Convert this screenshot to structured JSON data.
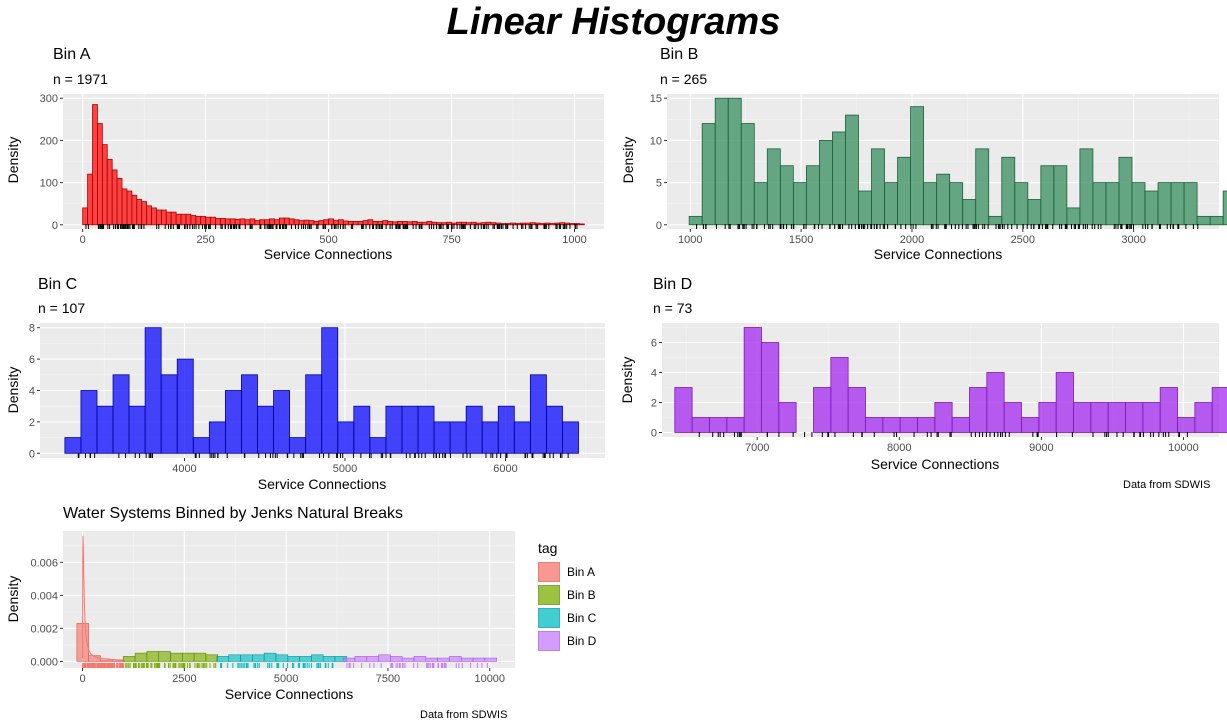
{
  "page": {
    "title": "Linear Histograms"
  },
  "chart_data": [
    {
      "id": "A",
      "type": "bar",
      "title": "Bin A",
      "subtitle": "n = 1971",
      "xlabel": "Service Connections",
      "ylabel": "Density",
      "xlim": [
        -40,
        1060
      ],
      "ylim": [
        -10,
        310
      ],
      "xticks": [
        0,
        250,
        500,
        750,
        1000
      ],
      "yticks": [
        0,
        100,
        200,
        300
      ],
      "bin_start": 0,
      "bin_width": 10,
      "values": [
        40,
        120,
        285,
        240,
        190,
        155,
        130,
        110,
        85,
        80,
        70,
        60,
        55,
        45,
        40,
        35,
        35,
        30,
        30,
        25,
        25,
        25,
        22,
        20,
        20,
        18,
        18,
        15,
        15,
        14,
        14,
        13,
        14,
        12,
        14,
        10,
        12,
        12,
        14,
        12,
        16,
        16,
        14,
        12,
        10,
        11,
        10,
        8,
        10,
        12,
        14,
        10,
        12,
        9,
        8,
        8,
        8,
        10,
        12,
        8,
        8,
        10,
        8,
        7,
        8,
        8,
        7,
        8,
        6,
        6,
        8,
        6,
        5,
        5,
        6,
        4,
        6,
        6,
        5,
        6,
        4,
        5,
        6,
        5,
        4,
        3,
        3,
        4,
        3,
        4,
        4,
        5,
        4,
        3,
        4,
        3,
        4,
        5,
        4,
        3,
        3,
        2
      ],
      "fill": "#ff0000",
      "stroke": "#b00000",
      "rug": {
        "min": 0,
        "max": 1010,
        "count": 260,
        "color": "#000000"
      }
    },
    {
      "id": "B",
      "type": "bar",
      "title": "Bin B",
      "subtitle": "n = 265",
      "xlabel": "Service Connections",
      "ylabel": "Density",
      "xlim": [
        895,
        3385
      ],
      "ylim": [
        -0.5,
        15.5
      ],
      "xticks": [
        1000,
        1500,
        2000,
        2500,
        3000
      ],
      "yticks": [
        0,
        5,
        10,
        15
      ],
      "bin_start": 995,
      "bin_width": 58.75,
      "values": [
        1,
        12,
        15,
        15,
        12,
        5,
        9,
        7,
        5,
        7,
        10,
        11,
        13,
        4,
        9,
        5,
        8,
        14,
        5,
        6,
        5,
        3,
        9,
        1,
        8,
        5,
        3,
        7,
        7,
        2,
        9,
        5,
        5,
        8,
        5,
        4,
        5,
        5,
        5,
        1,
        1,
        4,
        4
      ],
      "fill": "#2e8b57",
      "stroke": "#1f5f3c",
      "rug": {
        "min": 1005,
        "max": 3300,
        "count": 170,
        "color": "#000000"
      }
    },
    {
      "id": "C",
      "type": "bar",
      "title": "Bin C",
      "subtitle": "n = 107",
      "xlabel": "Service Connections",
      "ylabel": "Density",
      "xlim": [
        3100,
        6620
      ],
      "ylim": [
        -0.3,
        8.3
      ],
      "xticks": [
        4000,
        5000,
        6000
      ],
      "yticks": [
        0,
        2,
        4,
        6,
        8
      ],
      "bin_start": 3255,
      "bin_width": 100,
      "values": [
        1,
        4,
        3,
        5,
        3,
        8,
        5,
        6,
        1,
        2,
        4,
        5,
        3,
        4,
        1,
        5,
        8,
        2,
        3,
        1,
        3,
        3,
        3,
        2,
        2,
        3,
        2,
        3,
        2,
        5,
        3,
        2
      ],
      "fill": "#0000ff",
      "stroke": "#0000a0",
      "rug": {
        "min": 3320,
        "max": 6400,
        "count": 95,
        "color": "#000000"
      }
    },
    {
      "id": "D",
      "type": "bar",
      "title": "Bin D",
      "subtitle": "n = 73",
      "xlabel": "Service Connections",
      "ylabel": "Density",
      "xlim": [
        6330,
        10250
      ],
      "ylim": [
        -0.3,
        7.3
      ],
      "xticks": [
        7000,
        8000,
        9000,
        10000
      ],
      "yticks": [
        0,
        2,
        4,
        6
      ],
      "bin_start": 6420,
      "bin_width": 122,
      "values": [
        3,
        1,
        1,
        1,
        7,
        6,
        2,
        0,
        3,
        5,
        3,
        1,
        1,
        1,
        1,
        2,
        1,
        3,
        4,
        2,
        1,
        2,
        4,
        2,
        2,
        2,
        2,
        2,
        3,
        1,
        2,
        3,
        2
      ],
      "fill": "#a020f0",
      "stroke": "#7a1bb5",
      "rug": {
        "min": 6460,
        "max": 10030,
        "count": 72,
        "color": "#000000"
      }
    },
    {
      "id": "E",
      "type": "bar",
      "title": "Water Systems Binned by Jenks Natural Breaks",
      "xlabel": "Service Connections",
      "ylabel": "Density",
      "xlim": [
        -480,
        10620
      ],
      "ylim": [
        -0.0004,
        0.0079
      ],
      "xticks": [
        0,
        2500,
        5000,
        7500,
        10000
      ],
      "yticks": [
        0,
        0.002,
        0.004,
        0.006
      ],
      "ytick_labels": [
        "0.000",
        "0.002",
        "0.004",
        "0.006"
      ],
      "legend_title": "tag",
      "series": [
        {
          "name": "Bin A",
          "fill": "#f8766d",
          "stroke": "#e0564d",
          "x0": -140,
          "bw": 290,
          "values": [
            0.0023,
            0.00035,
            8e-05,
            3e-05
          ],
          "curve": [
            [
              0,
              0.0002
            ],
            [
              5,
              0.0062
            ],
            [
              10,
              0.0076
            ],
            [
              20,
              0.0069
            ],
            [
              30,
              0.0052
            ],
            [
              45,
              0.0036
            ],
            [
              60,
              0.0025
            ],
            [
              80,
              0.0017
            ],
            [
              110,
              0.0011
            ],
            [
              150,
              0.0007
            ],
            [
              200,
              0.00045
            ],
            [
              300,
              0.00028
            ],
            [
              450,
              0.00018
            ],
            [
              700,
              0.00012
            ],
            [
              1000,
              8e-05
            ]
          ],
          "rug": {
            "min": 0,
            "max": 1010,
            "count": 120
          }
        },
        {
          "name": "Bin B",
          "fill": "#7cae00",
          "stroke": "#5e8500",
          "x0": 1000,
          "bw": 290,
          "values": [
            0.0003,
            0.0005,
            0.0006,
            0.0006,
            0.0005,
            0.0005,
            0.0005,
            0.0004
          ],
          "rug": {
            "min": 1005,
            "max": 3300,
            "count": 70
          }
        },
        {
          "name": "Bin C",
          "fill": "#00bfc4",
          "stroke": "#00959a",
          "x0": 3300,
          "bw": 290,
          "values": [
            0.0003,
            0.0004,
            0.0004,
            0.0004,
            0.0005,
            0.0004,
            0.0003,
            0.0003,
            0.0004,
            0.0003,
            0.0003
          ],
          "rug": {
            "min": 3320,
            "max": 6400,
            "count": 55
          }
        },
        {
          "name": "Bin D",
          "fill": "#c77cff",
          "stroke": "#a45ad9",
          "x0": 6400,
          "bw": 290,
          "values": [
            0.0002,
            0.0003,
            0.0003,
            0.0004,
            0.0003,
            0.0002,
            0.0003,
            0.0002,
            0.0002,
            0.0003,
            0.0002,
            0.0002,
            0.0002
          ],
          "rug": {
            "min": 6460,
            "max": 10030,
            "count": 45
          }
        }
      ]
    }
  ],
  "captions": {
    "right": "Data from SDWIS",
    "bottom": "Data from SDWIS"
  }
}
